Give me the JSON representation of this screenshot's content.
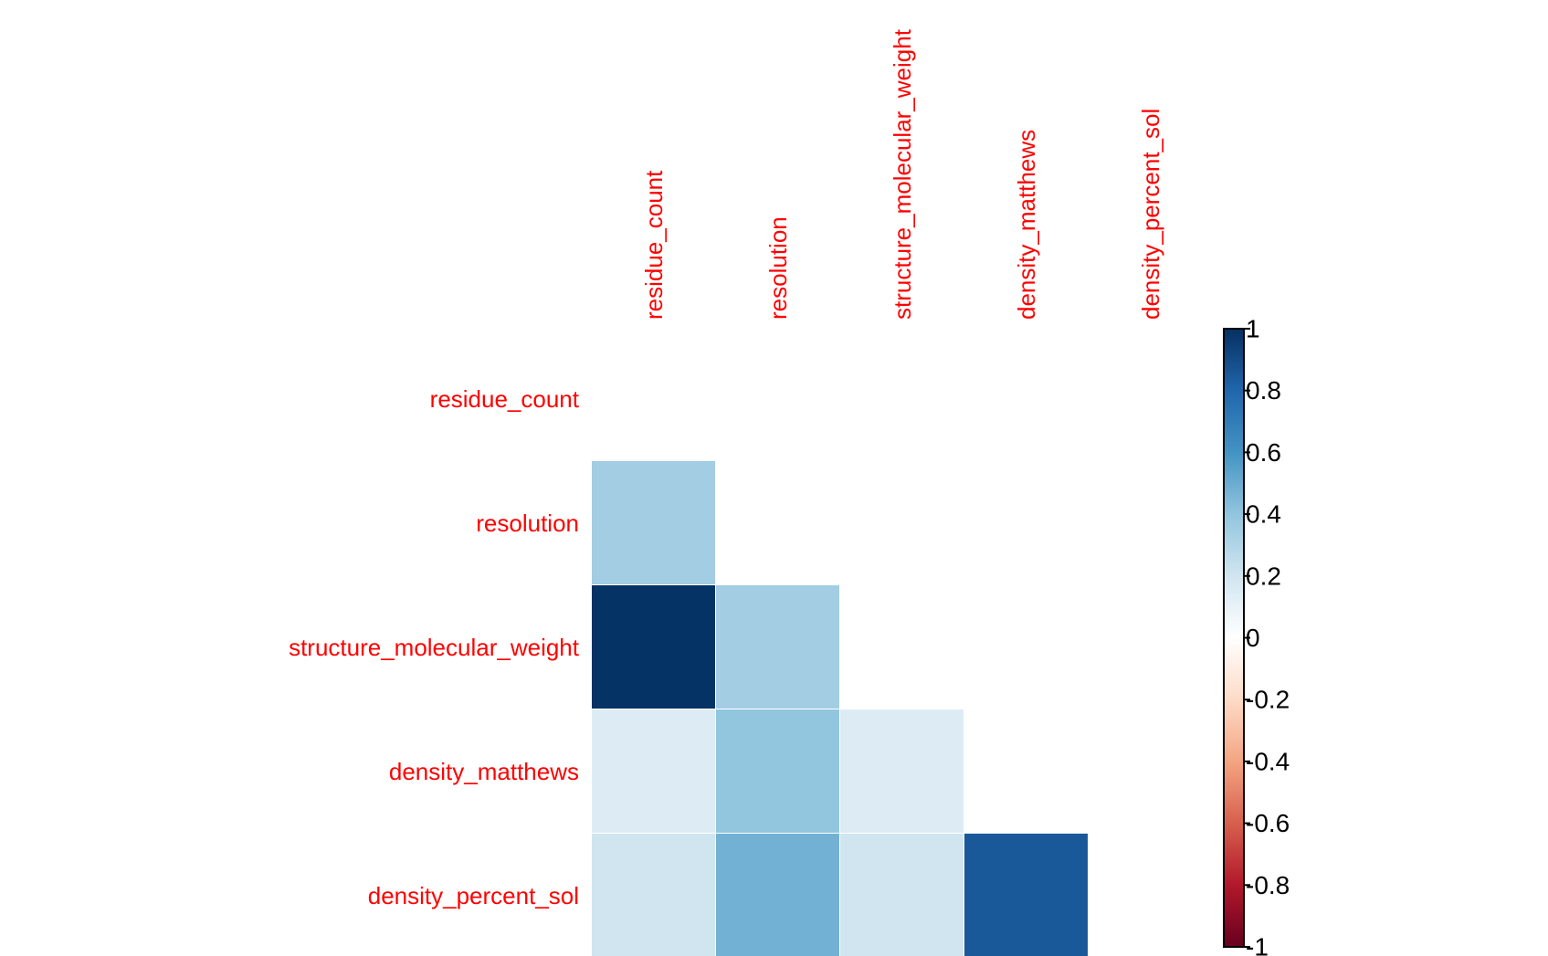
{
  "chart_data": {
    "type": "heatmap",
    "variables": [
      "residue_count",
      "resolution",
      "structure_molecular_weight",
      "density_matthews",
      "density_percent_sol"
    ],
    "matrix": [
      [
        1.0,
        0.35,
        0.99,
        0.15,
        0.2
      ],
      [
        0.35,
        1.0,
        0.35,
        0.4,
        0.48
      ],
      [
        0.99,
        0.35,
        1.0,
        0.15,
        0.2
      ],
      [
        0.15,
        0.4,
        0.15,
        1.0,
        0.85
      ],
      [
        0.2,
        0.48,
        0.2,
        0.85,
        1.0
      ]
    ],
    "shown": "lower-triangle-without-diagonal",
    "label_color": "#ff0000",
    "colorbar": {
      "range": [
        -1,
        1
      ],
      "ticks": [
        "1",
        "0.8",
        "0.6",
        "0.4",
        "0.2",
        "0",
        "-0.2",
        "-0.4",
        "-0.6",
        "-0.8",
        "-1"
      ],
      "placement": "right"
    },
    "color_stops": [
      {
        "value": -1.0,
        "color": "#67001f"
      },
      {
        "value": -0.8,
        "color": "#b2182b"
      },
      {
        "value": -0.6,
        "color": "#d6604d"
      },
      {
        "value": -0.4,
        "color": "#f4a582"
      },
      {
        "value": -0.2,
        "color": "#fddbc7"
      },
      {
        "value": 0.0,
        "color": "#ffffff"
      },
      {
        "value": 0.2,
        "color": "#d1e5f0"
      },
      {
        "value": 0.4,
        "color": "#92c5de"
      },
      {
        "value": 0.6,
        "color": "#4393c3"
      },
      {
        "value": 0.8,
        "color": "#2166ac"
      },
      {
        "value": 1.0,
        "color": "#053061"
      }
    ]
  }
}
